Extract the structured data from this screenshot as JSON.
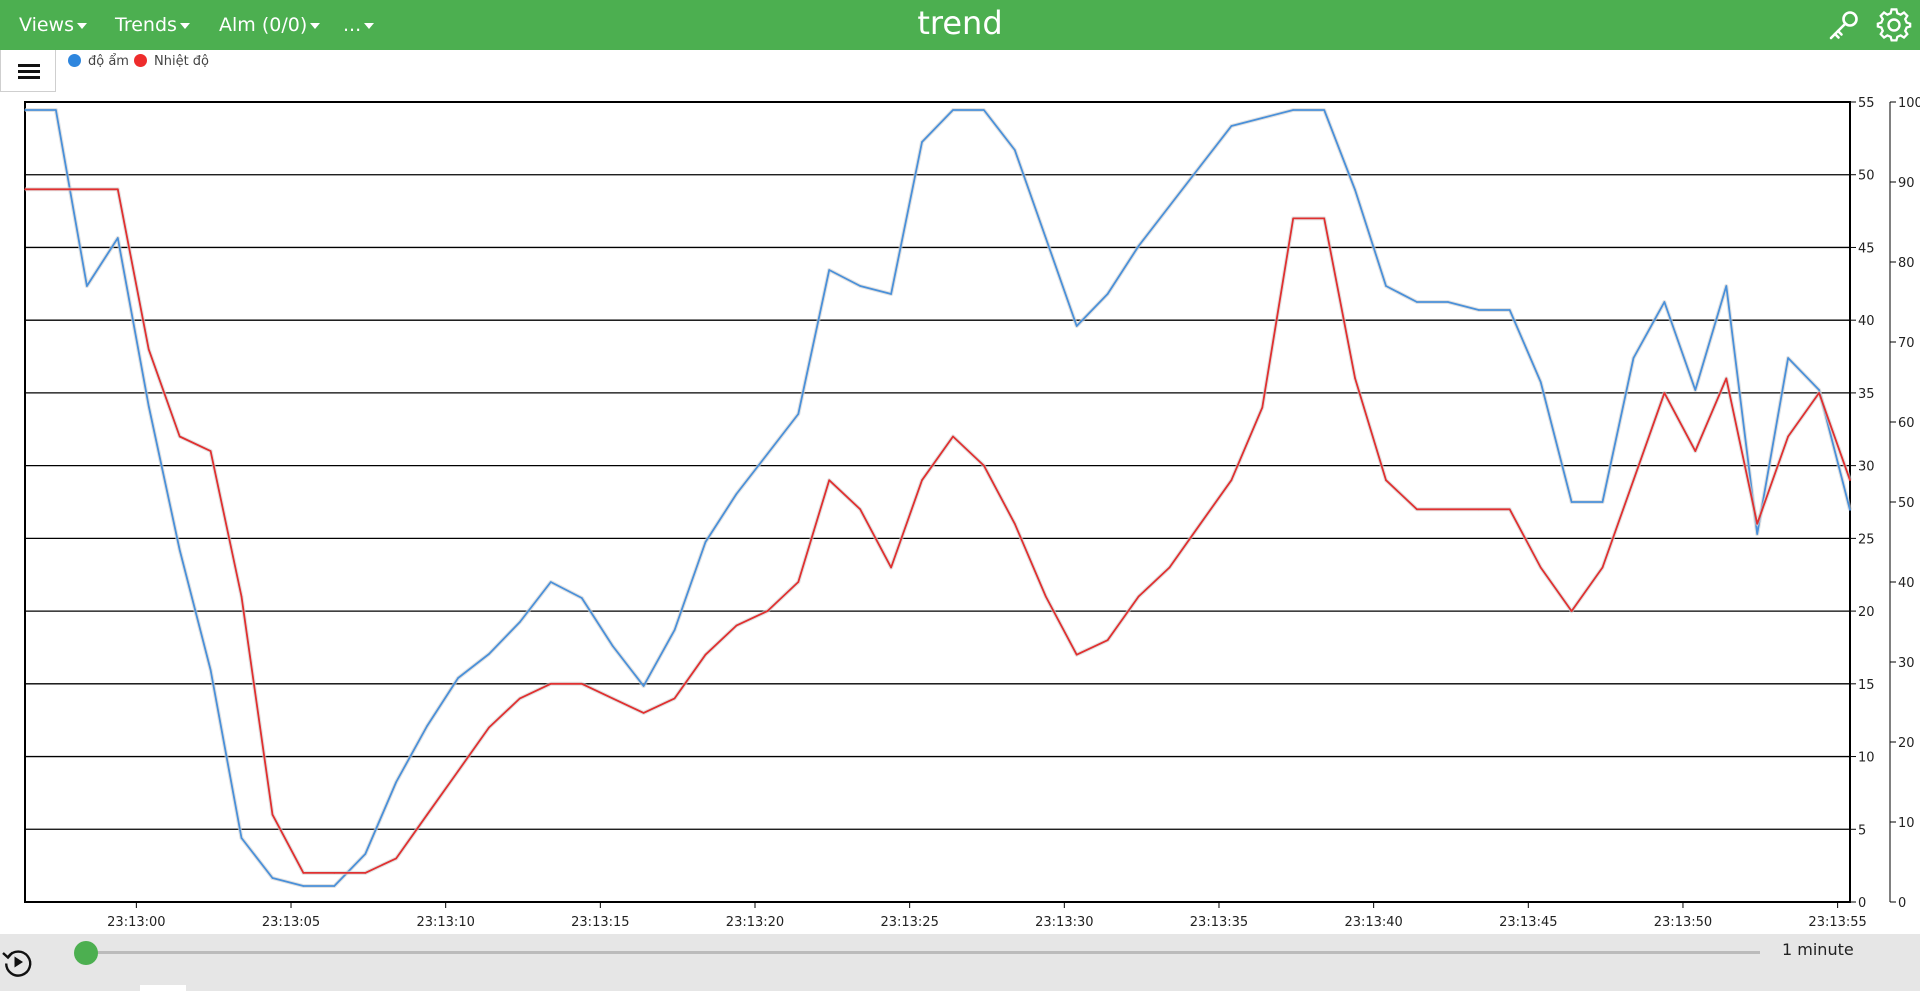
{
  "app": {
    "title": "trend",
    "menu": [
      {
        "label": "Views"
      },
      {
        "label": "Trends"
      },
      {
        "label": "Alm (0/0)"
      },
      {
        "label": "..."
      }
    ],
    "icons": {
      "key": "key-icon",
      "settings": "gear-icon",
      "menu": "hamburger-icon",
      "replay": "replay-icon"
    },
    "colors": {
      "accent": "#4caf50",
      "humidity": "#4a90d9",
      "temperature": "#e03030"
    }
  },
  "legend": [
    {
      "name": "độ ẩm",
      "color": "#2e86de"
    },
    {
      "name": "Nhiệt độ",
      "color": "#ee2c2c"
    }
  ],
  "timeline": {
    "range_label": "1 minute",
    "position": 0
  },
  "chart_data": {
    "type": "line",
    "grid": true,
    "x_ticks": [
      "23:13:00",
      "23:13:05",
      "23:13:10",
      "23:13:15",
      "23:13:20",
      "23:13:25",
      "23:13:30",
      "23:13:35",
      "23:13:40",
      "23:13:45",
      "23:13:50",
      "23:13:55"
    ],
    "x_range": [
      -3.6,
      55.4
    ],
    "y_left": {
      "range": [
        0,
        55
      ],
      "ticks": [
        0,
        5,
        10,
        15,
        20,
        25,
        30,
        35,
        40,
        45,
        50,
        55
      ]
    },
    "y_right": {
      "range": [
        0,
        100
      ],
      "ticks": [
        0,
        10,
        20,
        30,
        40,
        50,
        60,
        70,
        80,
        90,
        100
      ]
    },
    "series": [
      {
        "name": "độ ẩm",
        "axis": "right",
        "x": [
          -3.6,
          -2.6,
          -1.6,
          -0.6,
          0.4,
          1.4,
          2.4,
          3.4,
          4.4,
          5.4,
          6.4,
          7.4,
          8.4,
          9.4,
          10.4,
          11.4,
          12.4,
          13.4,
          14.4,
          15.4,
          16.4,
          17.4,
          18.4,
          19.4,
          20.4,
          21.4,
          22.4,
          23.4,
          24.4,
          25.4,
          26.4,
          27.4,
          28.4,
          29.4,
          30.4,
          31.4,
          32.4,
          33.4,
          34.4,
          35.4,
          36.4,
          37.4,
          38.4,
          39.4,
          40.4,
          41.4,
          42.4,
          43.4,
          44.4,
          45.4,
          46.4,
          47.4,
          48.4,
          49.4,
          50.4,
          51.4,
          52.4,
          53.4,
          54.4,
          55.4
        ],
        "values": [
          99,
          99,
          77,
          83,
          62,
          44,
          29,
          8,
          3,
          2,
          2,
          6,
          15,
          22,
          28,
          31,
          35,
          40,
          38,
          32,
          27,
          34,
          45,
          51,
          56,
          61,
          79,
          77,
          76,
          95,
          99,
          99,
          94,
          83,
          72,
          76,
          82,
          87,
          92,
          97,
          98,
          99,
          99,
          89,
          77,
          75,
          75,
          74,
          74,
          65,
          50,
          50,
          68,
          75,
          64,
          77,
          46,
          68,
          64,
          49
        ]
      },
      {
        "name": "Nhiệt độ",
        "axis": "left",
        "x": [
          -3.6,
          -2.6,
          -1.6,
          -0.6,
          0.4,
          1.4,
          2.4,
          3.4,
          4.4,
          5.4,
          6.4,
          7.4,
          8.4,
          9.4,
          10.4,
          11.4,
          12.4,
          13.4,
          14.4,
          15.4,
          16.4,
          17.4,
          18.4,
          19.4,
          20.4,
          21.4,
          22.4,
          23.4,
          24.4,
          25.4,
          26.4,
          27.4,
          28.4,
          29.4,
          30.4,
          31.4,
          32.4,
          33.4,
          34.4,
          35.4,
          36.4,
          37.4,
          38.4,
          39.4,
          40.4,
          41.4,
          42.4,
          43.4,
          44.4,
          45.4,
          46.4,
          47.4,
          48.4,
          49.4,
          50.4,
          51.4,
          52.4,
          53.4,
          54.4,
          55.4
        ],
        "values": [
          49,
          49,
          49,
          49,
          38,
          32,
          31,
          21,
          6,
          2,
          2,
          2,
          3,
          6,
          9,
          12,
          14,
          15,
          15,
          14,
          13,
          14,
          17,
          19,
          20,
          22,
          29,
          27,
          23,
          29,
          32,
          30,
          26,
          21,
          17,
          18,
          21,
          23,
          26,
          29,
          34,
          47,
          47,
          36,
          29,
          27,
          27,
          27,
          27,
          23,
          20,
          23,
          29,
          35,
          31,
          36,
          26,
          32,
          35,
          29
        ]
      }
    ]
  }
}
